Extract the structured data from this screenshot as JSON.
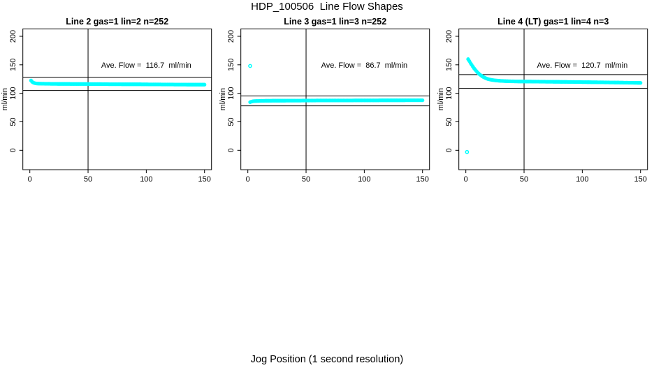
{
  "page": {
    "title": "HDP_100506  Line Flow Shapes",
    "xlabel": "Jog Position (1 second resolution)"
  },
  "chart_data": {
    "type": "scatter",
    "title": "HDP_100506  Line Flow Shapes",
    "xlabel": "Jog Position (1 second resolution)",
    "ylabel": "ml/min",
    "point_color": "#00ffff",
    "axis_color": "#000000",
    "x_ticks": [
      0,
      50,
      100,
      150
    ],
    "y_ticks": [
      0,
      50,
      100,
      150,
      200
    ],
    "xlim": [
      -6,
      156
    ],
    "ylim": [
      -34,
      213
    ],
    "grid": false,
    "legend": "none",
    "panels": [
      {
        "title": "Line 2 gas=1 lin=2 n=252",
        "annotation": "Ave. Flow =  116.7  ml/min",
        "ave_flow_ml_min": 116.7,
        "annotation_pos": [
          100,
          150
        ],
        "vline_x": 50,
        "hlines": [
          128.4,
          105.0
        ],
        "outliers": [],
        "points": [
          [
            1,
            122.5
          ],
          [
            2,
            120.2
          ],
          [
            3,
            118.8
          ],
          [
            4,
            118.0
          ],
          [
            5,
            117.5
          ],
          [
            6,
            117.2
          ],
          [
            8,
            117.0
          ],
          [
            10,
            116.9
          ],
          [
            12,
            116.8
          ],
          [
            15,
            116.7
          ],
          [
            20,
            116.6
          ],
          [
            25,
            116.5
          ],
          [
            30,
            116.5
          ],
          [
            35,
            116.4
          ],
          [
            40,
            116.4
          ],
          [
            45,
            116.3
          ],
          [
            50,
            116.3
          ],
          [
            55,
            116.2
          ],
          [
            60,
            116.2
          ],
          [
            65,
            116.1
          ],
          [
            70,
            116.0
          ],
          [
            75,
            116.0
          ],
          [
            80,
            115.9
          ],
          [
            85,
            115.9
          ],
          [
            90,
            115.8
          ],
          [
            95,
            115.8
          ],
          [
            100,
            115.7
          ],
          [
            105,
            115.6
          ],
          [
            110,
            115.6
          ],
          [
            115,
            115.5
          ],
          [
            120,
            115.5
          ],
          [
            125,
            115.4
          ],
          [
            130,
            115.4
          ],
          [
            135,
            115.3
          ],
          [
            140,
            115.3
          ],
          [
            145,
            115.2
          ],
          [
            150,
            115.2
          ]
        ]
      },
      {
        "title": "Line 3 gas=1 lin=3 n=252",
        "annotation": "Ave. Flow =  86.7  ml/min",
        "ave_flow_ml_min": 86.7,
        "annotation_pos": [
          100,
          150
        ],
        "vline_x": 50,
        "hlines": [
          95.4,
          78.0
        ],
        "outliers": [
          [
            2,
            148
          ]
        ],
        "points": [
          [
            2,
            84.5
          ],
          [
            3,
            85.4
          ],
          [
            4,
            85.9
          ],
          [
            5,
            86.2
          ],
          [
            6,
            86.4
          ],
          [
            8,
            86.6
          ],
          [
            10,
            86.7
          ],
          [
            15,
            86.9
          ],
          [
            20,
            87.0
          ],
          [
            25,
            87.1
          ],
          [
            30,
            87.1
          ],
          [
            35,
            87.2
          ],
          [
            40,
            87.2
          ],
          [
            50,
            87.3
          ],
          [
            60,
            87.4
          ],
          [
            70,
            87.4
          ],
          [
            80,
            87.5
          ],
          [
            90,
            87.5
          ],
          [
            100,
            87.6
          ],
          [
            110,
            87.6
          ],
          [
            120,
            87.7
          ],
          [
            130,
            87.7
          ],
          [
            140,
            87.8
          ],
          [
            150,
            87.8
          ]
        ]
      },
      {
        "title": "Line 4 (LT) gas=1 lin=4 n=3",
        "annotation": "Ave. Flow =  120.7  ml/min",
        "ave_flow_ml_min": 120.7,
        "annotation_pos": [
          100,
          150
        ],
        "vline_x": 50,
        "hlines": [
          132.8,
          108.6
        ],
        "outliers": [
          [
            1,
            -3
          ]
        ],
        "points": [
          [
            2,
            160
          ],
          [
            3,
            156.5
          ],
          [
            4,
            153
          ],
          [
            5,
            150
          ],
          [
            6,
            147
          ],
          [
            7,
            144
          ],
          [
            8,
            141.5
          ],
          [
            9,
            139
          ],
          [
            10,
            136.8
          ],
          [
            11,
            134.8
          ],
          [
            12,
            133
          ],
          [
            13,
            131.4
          ],
          [
            14,
            130
          ],
          [
            15,
            128.7
          ],
          [
            16,
            127.6
          ],
          [
            17,
            126.6
          ],
          [
            18,
            125.8
          ],
          [
            19,
            125.1
          ],
          [
            20,
            124.5
          ],
          [
            22,
            123.6
          ],
          [
            24,
            123.0
          ],
          [
            26,
            122.5
          ],
          [
            28,
            122.1
          ],
          [
            30,
            121.8
          ],
          [
            35,
            121.3
          ],
          [
            40,
            121.0
          ],
          [
            45,
            120.8
          ],
          [
            50,
            120.7
          ],
          [
            55,
            120.6
          ],
          [
            60,
            120.5
          ],
          [
            70,
            120.3
          ],
          [
            80,
            120.1
          ],
          [
            90,
            119.9
          ],
          [
            100,
            119.7
          ],
          [
            110,
            119.4
          ],
          [
            120,
            119.2
          ],
          [
            130,
            118.9
          ],
          [
            140,
            118.6
          ],
          [
            150,
            118.3
          ]
        ]
      }
    ]
  }
}
